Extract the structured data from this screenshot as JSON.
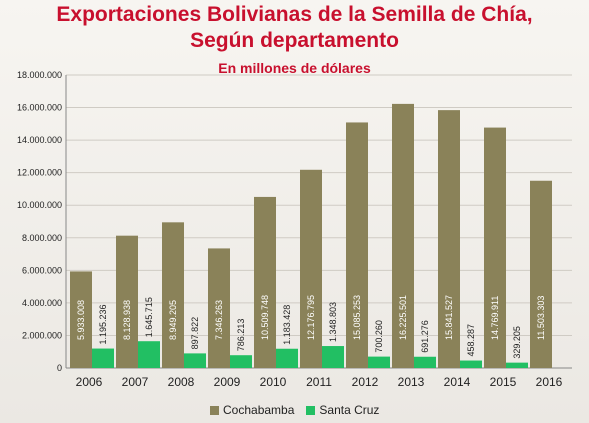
{
  "chart_data": {
    "type": "bar",
    "title_lines": [
      "Exportaciones Bolivianas de la Semilla de Chía,",
      "Según departamento"
    ],
    "subtitle": "En millones de dólares",
    "categories": [
      "2006",
      "2007",
      "2008",
      "2009",
      "2010",
      "2011",
      "2012",
      "2013",
      "2014",
      "2015",
      "2016"
    ],
    "series": [
      {
        "name": "Cochabamba",
        "color": "#8a8259",
        "values": [
          5933008,
          8128938,
          8949205,
          7346263,
          10509748,
          12176795,
          15085253,
          16225501,
          15841527,
          14769911,
          11503303
        ],
        "labels": [
          "5.933.008",
          "8.128.938",
          "8.949.205",
          "7.346.263",
          "10.509.748",
          "12.176.795",
          "15.085.253",
          "16.225.501",
          "15.841.527",
          "14.769.911",
          "11.503.303"
        ]
      },
      {
        "name": "Santa Cruz",
        "color": "#22bf63",
        "values": [
          1195236,
          1645715,
          897822,
          786213,
          1183428,
          1348803,
          700260,
          691276,
          458287,
          329205,
          null
        ],
        "labels": [
          "1.195.236",
          "1.645.715",
          "897.822",
          "786.213",
          "1.183.428",
          "1.348.803",
          "700.260",
          "691.276",
          "458.287",
          "329.205",
          ""
        ]
      }
    ],
    "ylim": [
      0,
      18000000
    ],
    "yticks": [
      0,
      2000000,
      4000000,
      6000000,
      8000000,
      10000000,
      12000000,
      14000000,
      16000000,
      18000000
    ],
    "ytick_labels": [
      "0",
      "2.000.000",
      "4.000.000",
      "6.000.000",
      "8.000.000",
      "10.000.000",
      "12.000.000",
      "14.000.000",
      "16.000.000",
      "18.000.000"
    ],
    "grid": true,
    "legend_position": "bottom"
  }
}
